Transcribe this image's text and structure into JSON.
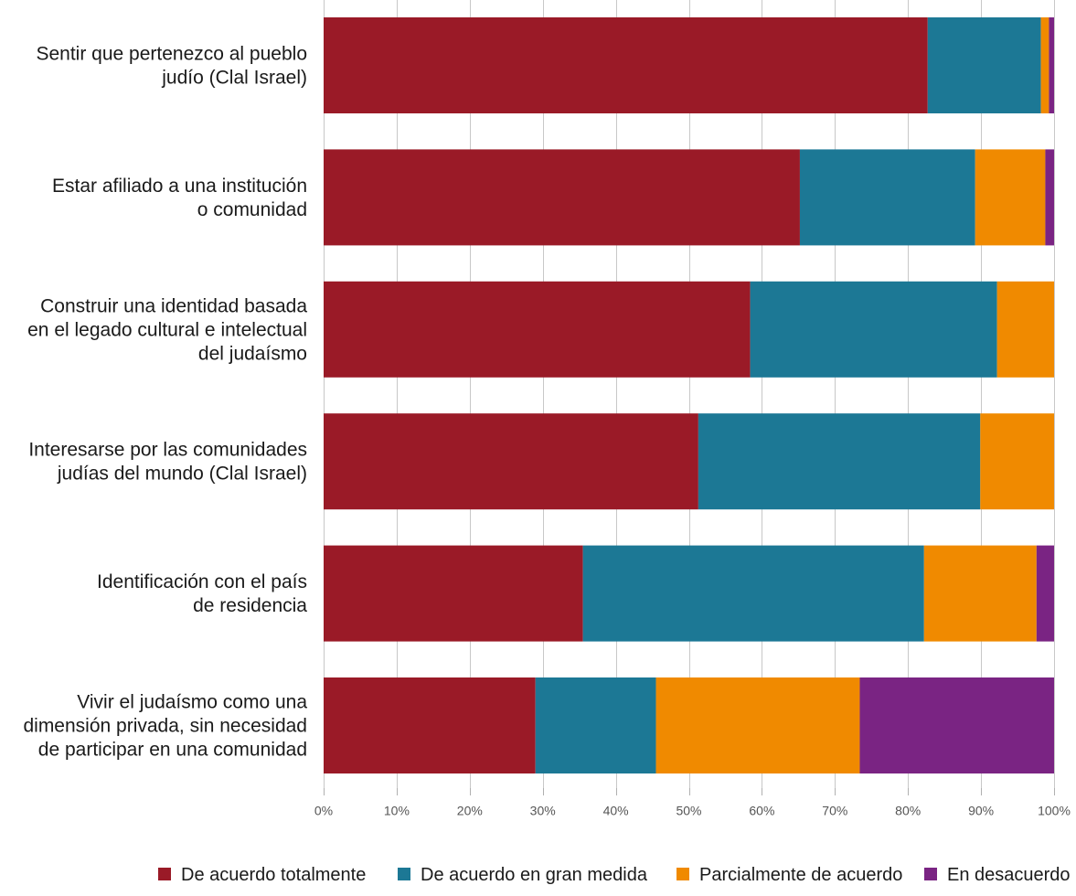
{
  "chart_data": {
    "type": "bar",
    "orientation": "horizontal",
    "stacked": true,
    "percent_stacked": true,
    "title": "",
    "xlabel": "",
    "ylabel": "",
    "xlim": [
      0,
      100
    ],
    "x_ticks": [
      "0%",
      "10%",
      "20%",
      "30%",
      "40%",
      "50%",
      "60%",
      "70%",
      "80%",
      "90%",
      "100%"
    ],
    "x_tick_values": [
      0,
      10,
      20,
      30,
      40,
      50,
      60,
      70,
      80,
      90,
      100
    ],
    "grid": "vertical",
    "legend_position": "bottom-center",
    "categories": [
      [
        "Sentir que pertenezco al pueblo",
        "judío (Clal Israel)"
      ],
      [
        "Estar afiliado a una institución",
        "o comunidad"
      ],
      [
        "Construir una identidad basada",
        "en el legado cultural e intelectual",
        "del judaísmo"
      ],
      [
        "Interesarse por las comunidades",
        "judías del mundo (Clal Israel)"
      ],
      [
        "Identificación con el país",
        "de residencia"
      ],
      [
        "Vivir el judaísmo como una",
        "dimensión privada, sin necesidad",
        "de participar en una comunidad"
      ]
    ],
    "series": [
      {
        "name": "De acuerdo totalmente",
        "color": "#9a1a27",
        "values": [
          82.7,
          65.2,
          58.4,
          51.3,
          35.5,
          29.0
        ]
      },
      {
        "name": "De acuerdo en gran medida",
        "color": "#1c7895",
        "values": [
          15.5,
          24.0,
          33.8,
          38.6,
          46.7,
          16.5
        ]
      },
      {
        "name": "Parcialmente de acuerdo",
        "color": "#f08a00",
        "values": [
          1.1,
          9.6,
          7.8,
          10.1,
          15.4,
          27.9
        ]
      },
      {
        "name": "En desacuerdo",
        "color": "#7a2483",
        "values": [
          0.7,
          1.2,
          0.0,
          0.0,
          2.4,
          26.6
        ]
      }
    ]
  }
}
